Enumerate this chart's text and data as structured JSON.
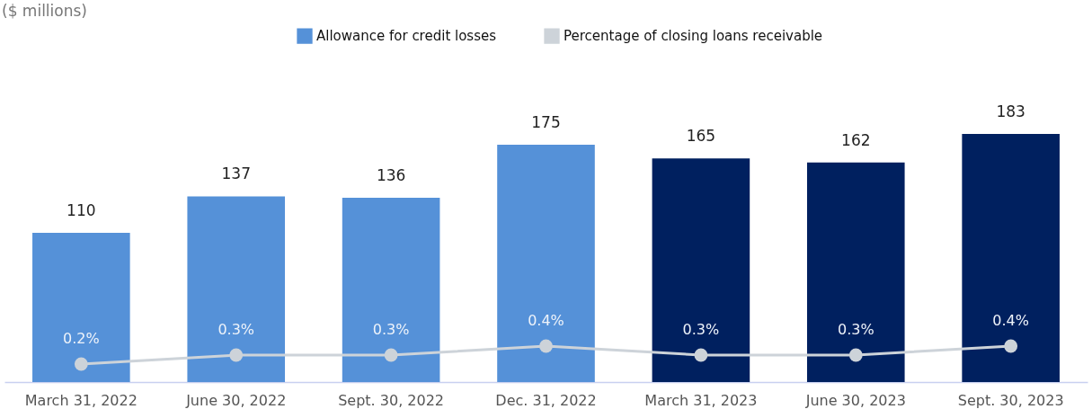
{
  "chart_data": {
    "type": "bar",
    "annotations": [
      "($ millions)"
    ],
    "categories": [
      "March 31, 2022",
      "June 30, 2022",
      "Sept. 30, 2022",
      "Dec. 31, 2022",
      "March 31, 2023",
      "June 30, 2023",
      "Sept. 30, 2023"
    ],
    "series": [
      {
        "name": "Allowance for credit losses",
        "colors": [
          "#5591d8",
          "#5591d8",
          "#5591d8",
          "#5591d8",
          "#00205f",
          "#00205f",
          "#00205f"
        ],
        "values": [
          110,
          137,
          136,
          175,
          165,
          162,
          183
        ]
      },
      {
        "name": "Percentage of closing loans receivable",
        "type": "line",
        "axis": "y2",
        "color": "#cdd3d9",
        "values": [
          0.2,
          0.3,
          0.3,
          0.4,
          0.3,
          0.3,
          0.4
        ],
        "value_labels": [
          "0.2%",
          "0.3%",
          "0.3%",
          "0.4%",
          "0.3%",
          "0.3%",
          "0.4%"
        ]
      }
    ],
    "tick_labels": "x",
    "data_labels": true,
    "legend": "top",
    "marker": "circle",
    "line_style": "solid",
    "grid": false
  }
}
